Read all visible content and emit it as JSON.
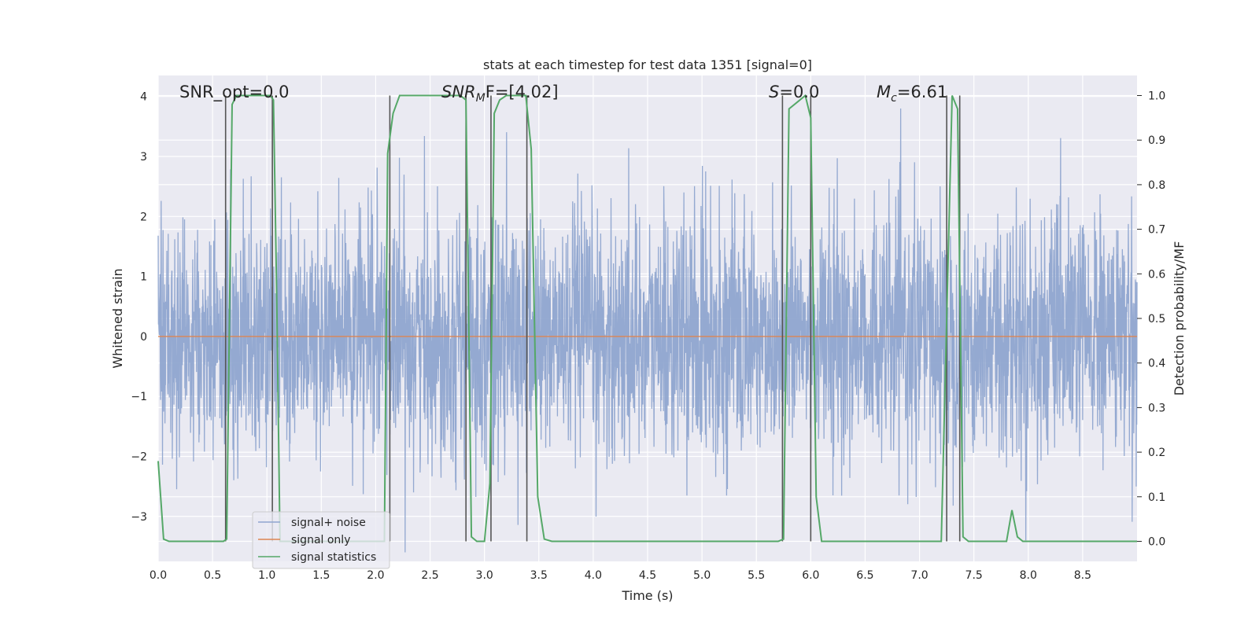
{
  "chart_data": {
    "type": "line",
    "title": "stats at each timestep for test data 1351 [signal=0]",
    "xlabel": "Time (s)",
    "ylabel": "Whitened strain",
    "y2label": "Detection probability/MF",
    "xlim": [
      0,
      9.0
    ],
    "ylim": [
      -3.75,
      4.35
    ],
    "y2lim": [
      -0.045,
      1.045
    ],
    "x_ticks": [
      "0.0",
      "0.5",
      "1.0",
      "1.5",
      "2.0",
      "2.5",
      "3.0",
      "3.5",
      "4.0",
      "4.5",
      "5.0",
      "5.5",
      "6.0",
      "6.5",
      "7.0",
      "7.5",
      "8.0",
      "8.5"
    ],
    "y_ticks": [
      "4",
      "3",
      "2",
      "1",
      "0",
      "−1",
      "−2",
      "−3"
    ],
    "y2_ticks": [
      "1.0",
      "0.9",
      "0.8",
      "0.7",
      "0.6",
      "0.5",
      "0.4",
      "0.3",
      "0.2",
      "0.1",
      "0.0"
    ],
    "grid": true,
    "legend_position": "lower-left",
    "annotations": {
      "snr_opt": "SNR_opt=0.0",
      "snr_mf_main": "SNR",
      "snr_mf_sub": "M",
      "snr_mf_rest": "F=[4.02]",
      "s_main": "S",
      "s_rest": "=0.0",
      "mc_main": "M",
      "mc_sub": "c",
      "mc_rest": "=6.61"
    },
    "series": [
      {
        "name": "signal+ noise",
        "color": "#8fa5cf",
        "description_of_values": "whitened noise, approx. Gaussian, envelope about ±1.7 with spikes to ±3.8",
        "noise_sigma": 1.0
      },
      {
        "name": "signal only",
        "color": "#dd8452",
        "x": [
          0,
          9.0
        ],
        "y": [
          0,
          0
        ]
      },
      {
        "name": "signal statistics",
        "color": "#55a868",
        "axis": "right",
        "x": [
          0.0,
          0.05,
          0.1,
          0.6,
          0.63,
          0.68,
          0.72,
          1.03,
          1.06,
          1.09,
          1.12,
          2.08,
          2.11,
          2.16,
          2.22,
          2.78,
          2.83,
          2.88,
          2.93,
          3.0,
          3.05,
          3.09,
          3.14,
          3.2,
          3.38,
          3.43,
          3.49,
          3.55,
          3.62,
          5.7,
          5.75,
          5.8,
          5.95,
          6.0,
          6.05,
          6.1,
          7.2,
          7.25,
          7.3,
          7.35,
          7.4,
          7.45,
          7.8,
          7.85,
          7.9,
          7.95,
          8.0,
          9.0
        ],
        "y": [
          0.18,
          0.005,
          0.0,
          0.0,
          0.005,
          0.98,
          1.0,
          1.0,
          0.99,
          0.55,
          0.0,
          0.0,
          0.87,
          0.96,
          1.0,
          1.0,
          0.99,
          0.01,
          0.0,
          0.0,
          0.13,
          0.96,
          0.99,
          1.0,
          1.0,
          0.88,
          0.1,
          0.005,
          0.0,
          0.0,
          0.005,
          0.97,
          1.0,
          0.95,
          0.1,
          0.0,
          0.0,
          0.5,
          1.0,
          0.97,
          0.01,
          0.0,
          0.0,
          0.07,
          0.01,
          0.0,
          0.0,
          0.0
        ]
      }
    ],
    "detection_markers": [
      0.62,
      1.05,
      2.13,
      2.83,
      3.06,
      3.39,
      5.74,
      6.0,
      7.25,
      7.37
    ],
    "marker_color": "#555555"
  }
}
